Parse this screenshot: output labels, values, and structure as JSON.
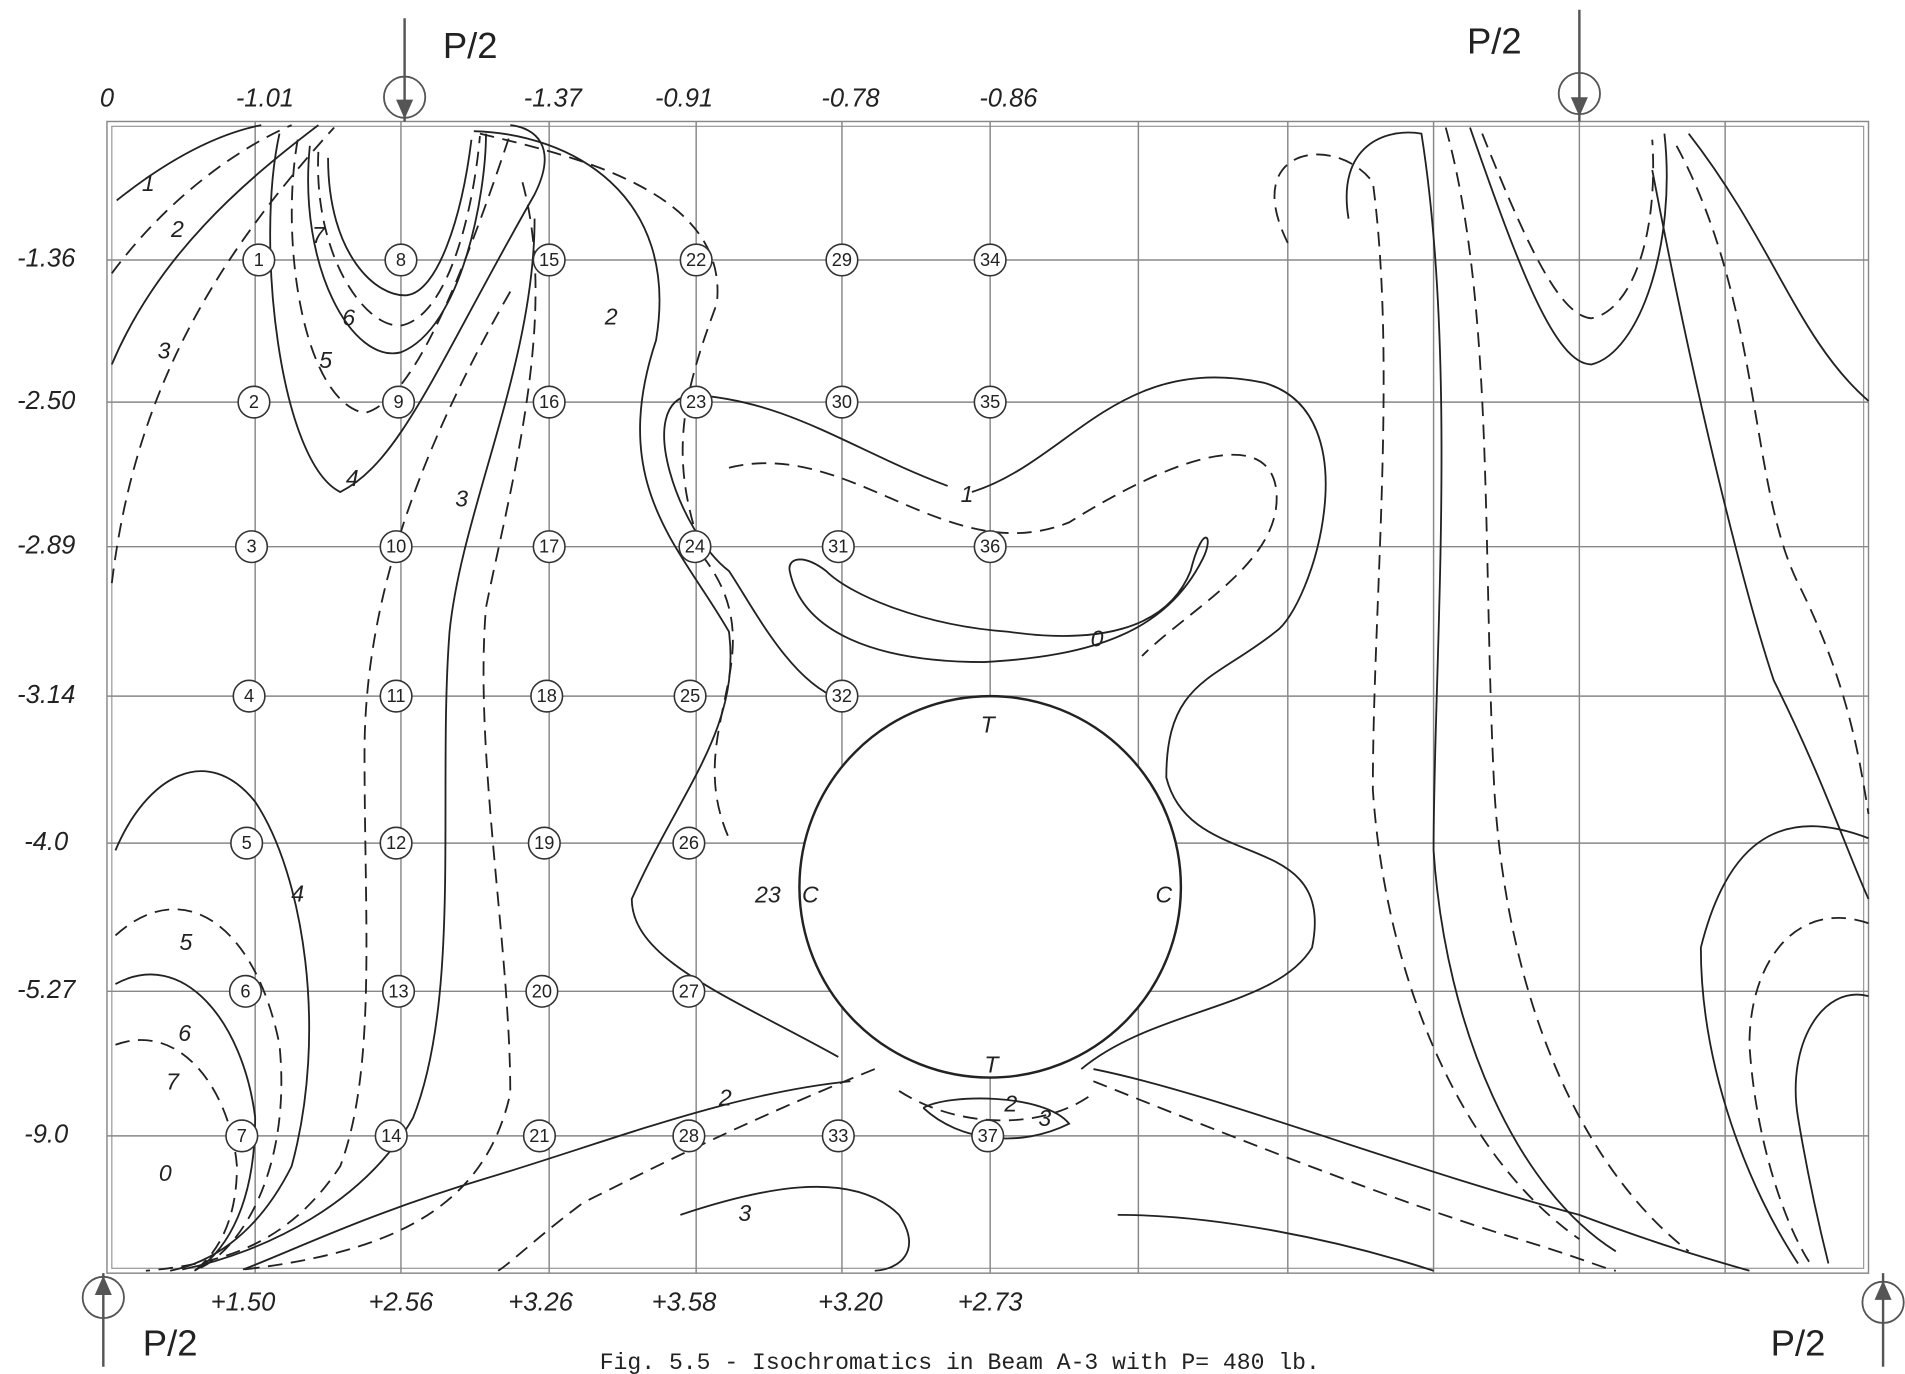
{
  "loads": [
    "P/2",
    "P/2",
    "P/2",
    "P/2"
  ],
  "top_values": [
    "0",
    "-1.01",
    "-1.37",
    "-0.91",
    "-0.78",
    "-0.86"
  ],
  "side_values": [
    "-1.36",
    "-2.50",
    "-2.89",
    "-3.14",
    "-4.0",
    "-5.27",
    "-9.0"
  ],
  "bottom_values": [
    "+1.50",
    "+2.56",
    "+3.26",
    "+3.58",
    "+3.20",
    "+2.73"
  ],
  "nodes": [
    "1",
    "2",
    "3",
    "4",
    "5",
    "6",
    "7",
    "8",
    "9",
    "10",
    "11",
    "12",
    "13",
    "14",
    "15",
    "16",
    "17",
    "18",
    "19",
    "20",
    "21",
    "22",
    "23",
    "24",
    "25",
    "26",
    "27",
    "28",
    "29",
    "30",
    "31",
    "32",
    "33",
    "34",
    "35",
    "36",
    "37"
  ],
  "contour_labels": [
    "1",
    "2",
    "3",
    "7",
    "6",
    "5",
    "4",
    "3",
    "2",
    "1",
    "0",
    "T",
    "T",
    "C",
    "C",
    "23",
    "2",
    "2",
    "3",
    "3",
    "5",
    "6",
    "7",
    "0",
    "4"
  ],
  "caption": "Fig. 5.5 - Isochromatics in Beam A-3 with P= 480 lb."
}
